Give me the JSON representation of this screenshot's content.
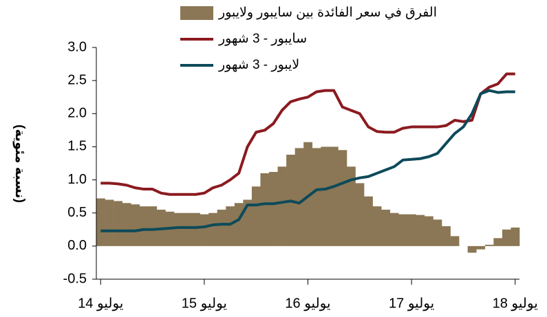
{
  "chart_data": {
    "type": "bar_line",
    "y_label": "(نسبة مئوية)",
    "categories": [
      "يوليو 14",
      null,
      null,
      null,
      null,
      null,
      null,
      null,
      null,
      null,
      null,
      null,
      "يوليو 15",
      null,
      null,
      null,
      null,
      null,
      null,
      null,
      null,
      null,
      null,
      null,
      "يوليو 16",
      null,
      null,
      null,
      null,
      null,
      null,
      null,
      null,
      null,
      null,
      null,
      "يوليو 17",
      null,
      null,
      null,
      null,
      null,
      null,
      null,
      null,
      null,
      null,
      null,
      "يوليو 18"
    ],
    "series": [
      {
        "name": "الفرق في سعر الفائدة بين سايبور ولايبور",
        "kind": "bar",
        "color": "#8b7755",
        "values": [
          0.72,
          0.7,
          0.68,
          0.65,
          0.63,
          0.6,
          0.6,
          0.55,
          0.52,
          0.5,
          0.5,
          0.5,
          0.48,
          0.5,
          0.55,
          0.6,
          0.65,
          0.7,
          0.9,
          1.1,
          1.12,
          1.2,
          1.38,
          1.48,
          1.57,
          1.48,
          1.5,
          1.5,
          1.45,
          1.2,
          0.95,
          0.75,
          0.6,
          0.55,
          0.5,
          0.48,
          0.48,
          0.47,
          0.45,
          0.4,
          0.3,
          0.15,
          0.0,
          -0.1,
          -0.05,
          0.02,
          0.12,
          0.25,
          0.28
        ]
      },
      {
        "name": "سايبور - 3 شهور",
        "kind": "line",
        "color": "#8b1a1f",
        "values": [
          0.95,
          0.95,
          0.94,
          0.92,
          0.88,
          0.86,
          0.86,
          0.8,
          0.78,
          0.78,
          0.78,
          0.78,
          0.8,
          0.88,
          0.92,
          1.0,
          1.1,
          1.5,
          1.72,
          1.75,
          1.85,
          2.05,
          2.18,
          2.22,
          2.25,
          2.33,
          2.35,
          2.35,
          2.1,
          2.05,
          2.0,
          1.8,
          1.73,
          1.72,
          1.72,
          1.78,
          1.8,
          1.8,
          1.8,
          1.8,
          1.82,
          1.9,
          1.88,
          1.9,
          2.3,
          2.4,
          2.45,
          2.6,
          2.6
        ]
      },
      {
        "name": "لايبور - 3 شهور",
        "kind": "line",
        "color": "#0d4a5a",
        "values": [
          0.23,
          0.23,
          0.23,
          0.23,
          0.23,
          0.25,
          0.25,
          0.26,
          0.27,
          0.28,
          0.28,
          0.28,
          0.29,
          0.32,
          0.33,
          0.33,
          0.4,
          0.62,
          0.62,
          0.64,
          0.64,
          0.66,
          0.68,
          0.65,
          0.75,
          0.85,
          0.86,
          0.9,
          0.95,
          1.0,
          1.03,
          1.05,
          1.1,
          1.15,
          1.2,
          1.3,
          1.31,
          1.32,
          1.35,
          1.4,
          1.55,
          1.7,
          1.8,
          2.0,
          2.3,
          2.35,
          2.32,
          2.33,
          2.33
        ]
      }
    ],
    "ylim": [
      -0.5,
      3.0
    ],
    "yticks": [
      {
        "value": -0.5,
        "label": "-0.5"
      },
      {
        "value": 0,
        "label": "0.0"
      },
      {
        "value": 0.5,
        "label": "0.5"
      },
      {
        "value": 1,
        "label": "1.0"
      },
      {
        "value": 1.5,
        "label": "1.5"
      },
      {
        "value": 2,
        "label": "2.0"
      },
      {
        "value": 2.5,
        "label": "2.5"
      },
      {
        "value": 3,
        "label": "3.0"
      }
    ],
    "grid": false
  }
}
